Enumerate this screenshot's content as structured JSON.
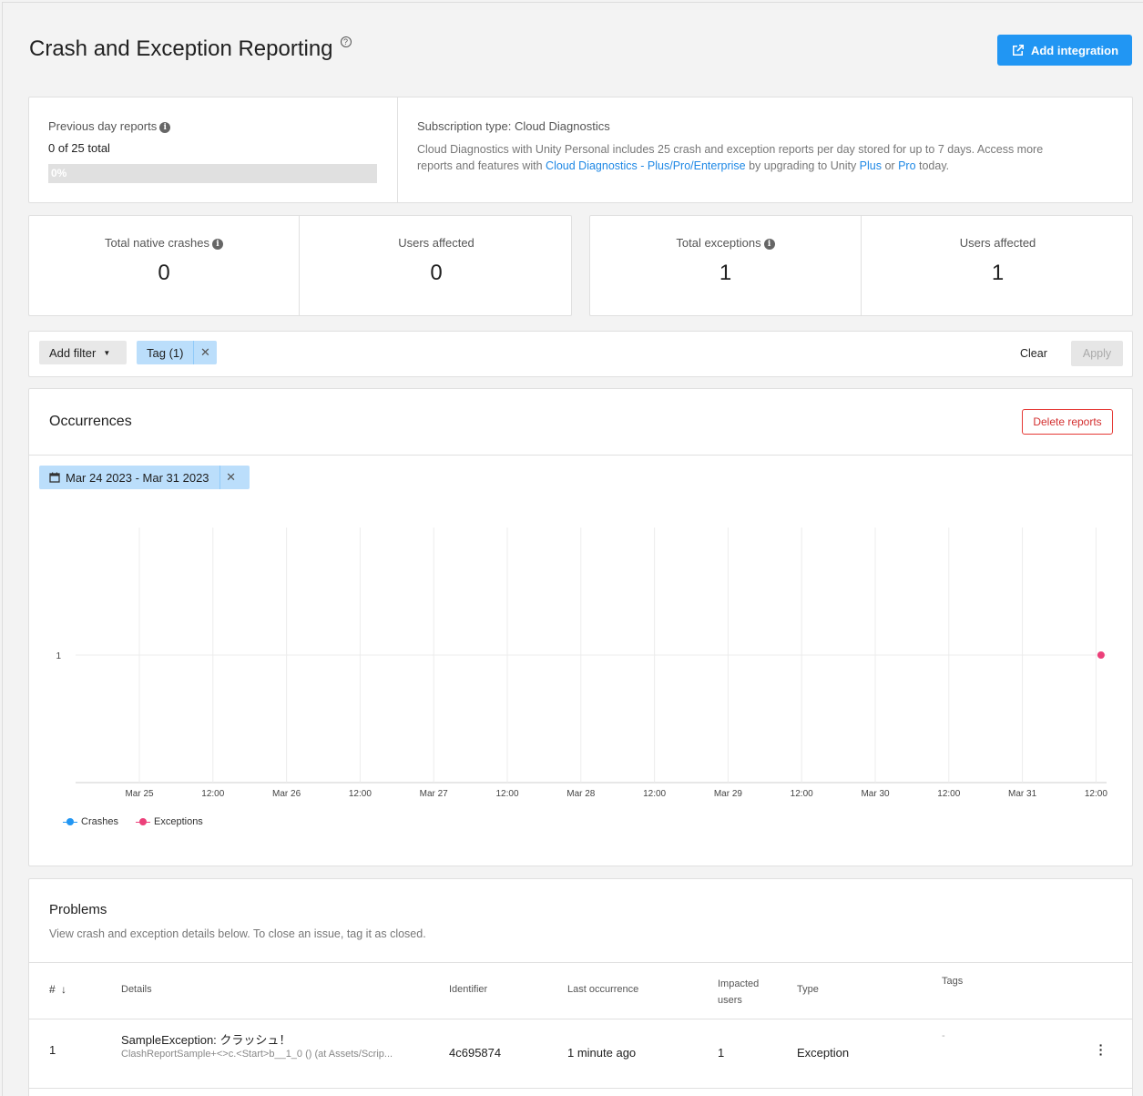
{
  "header": {
    "title": "Crash and Exception Reporting",
    "help_glyph": "?",
    "add_integration_label": "Add integration"
  },
  "usage": {
    "previous_day_label": "Previous day reports",
    "total_text": "0 of 25 total",
    "progress_text": "0%",
    "progress_value": 0,
    "subscription_title": "Subscription type: Cloud Diagnostics",
    "subscription_text_1": "Cloud Diagnostics with Unity Personal includes 25 crash and exception reports per day stored for up to 7 days. Access more",
    "subscription_text_2a": "reports and features with ",
    "subscription_link": "Cloud Diagnostics - Plus/Pro/Enterprise",
    "subscription_text_2b": " by upgrading to Unity ",
    "plus_link": "Plus",
    "or_text": " or ",
    "pro_link": "Pro",
    "today_text": " today."
  },
  "stats": {
    "crashes_label": "Total native crashes",
    "crashes_value": "0",
    "crash_users_label": "Users affected",
    "crash_users_value": "0",
    "exceptions_label": "Total exceptions",
    "exceptions_value": "1",
    "exception_users_label": "Users affected",
    "exception_users_value": "1"
  },
  "filters": {
    "add_filter_label": "Add filter",
    "tag_chip_label": "Tag (1)",
    "clear_label": "Clear",
    "apply_label": "Apply"
  },
  "occurrences": {
    "title": "Occurrences",
    "delete_label": "Delete reports",
    "date_range": "Mar 24 2023 - Mar 31 2023"
  },
  "chart_data": {
    "type": "line",
    "x_ticks": [
      "Mar 25",
      "12:00",
      "Mar 26",
      "12:00",
      "Mar 27",
      "12:00",
      "Mar 28",
      "12:00",
      "Mar 29",
      "12:00",
      "Mar 30",
      "12:00",
      "Mar 31",
      "12:00"
    ],
    "y_ticks": [
      "1"
    ],
    "series": [
      {
        "name": "Crashes",
        "color": "#2196f3",
        "points": []
      },
      {
        "name": "Exceptions",
        "color": "#ec407a",
        "points": [
          {
            "x": "Mar 31 12:15",
            "y": 1
          }
        ]
      }
    ],
    "legend_position": "bottom-left",
    "grid": true
  },
  "problems": {
    "title": "Problems",
    "subtitle": "View crash and exception details below. To close an issue, tag it as closed.",
    "columns": {
      "num": "#",
      "details": "Details",
      "identifier": "Identifier",
      "last": "Last occurrence",
      "impacted_1": "Impacted",
      "impacted_2": "users",
      "type": "Type",
      "tags": "Tags"
    },
    "rows": [
      {
        "num": "1",
        "title": "SampleException: クラッシュ！",
        "detail": "ClashReportSample+<>c.<Start>b__1_0 () (at Assets/Scrip...",
        "identifier": "4c695874",
        "last": "1 minute ago",
        "impacted": "1",
        "type": "Exception",
        "tags": "-"
      }
    ]
  }
}
